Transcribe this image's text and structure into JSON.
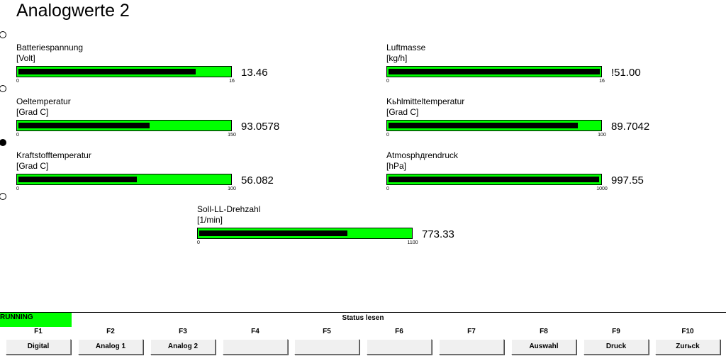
{
  "page": {
    "title": "Analogwerte 2"
  },
  "gauges": [
    {
      "label": "Batteriespannung",
      "unit": "[Volt]",
      "min": "0",
      "max": "16",
      "value": "13.46",
      "fraction": 0.84
    },
    {
      "label": "Luftmasse",
      "unit": "[kg/h]",
      "min": "0",
      "max": "16",
      "value": "!51.00",
      "fraction": 1.0
    },
    {
      "label": "Oeltemperatur",
      "unit": "[Grad C]",
      "min": "0",
      "max": "150",
      "value": "93.0578",
      "fraction": 0.62
    },
    {
      "label": "Kьhlmitteltemperatur",
      "unit": "[Grad C]",
      "min": "0",
      "max": "100",
      "value": "89.7042",
      "fraction": 0.897
    },
    {
      "label": "Kraftstofftemperatur",
      "unit": "[Grad C]",
      "min": "0",
      "max": "100",
      "value": "56.082",
      "fraction": 0.561
    },
    {
      "label": "Atmosphдrendruck",
      "unit": "[hPa]",
      "min": "0",
      "max": "1000",
      "value": "997.55",
      "fraction": 0.9975
    },
    {
      "label": "Soll-LL-Drehzahl",
      "unit": "[1/min]",
      "min": "0",
      "max": "1100",
      "value": "773.33",
      "fraction": 0.703
    }
  ],
  "status": {
    "running": "RUNNING",
    "title": "Status lesen"
  },
  "fkeys": [
    {
      "key": "F1",
      "label": "Digital"
    },
    {
      "key": "F2",
      "label": "Analog 1"
    },
    {
      "key": "F3",
      "label": "Analog 2"
    },
    {
      "key": "F4",
      "label": ""
    },
    {
      "key": "F5",
      "label": ""
    },
    {
      "key": "F6",
      "label": ""
    },
    {
      "key": "F7",
      "label": ""
    },
    {
      "key": "F8",
      "label": "Auswahl"
    },
    {
      "key": "F9",
      "label": "Druck"
    },
    {
      "key": "F10",
      "label": "Zurьck"
    }
  ]
}
